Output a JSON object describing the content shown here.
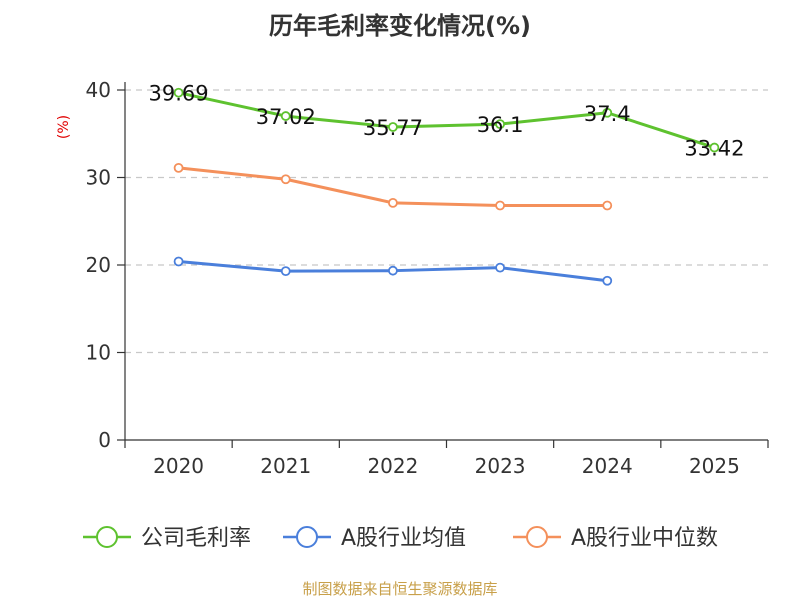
{
  "chart_data": {
    "type": "line",
    "title": "历年毛利率变化情况(%)",
    "ylabel": "(%)",
    "xlabel": "",
    "ylim": [
      0,
      40
    ],
    "yticks": [
      0,
      10,
      20,
      30,
      40
    ],
    "grid": true,
    "legend_position": "bottom",
    "categories": [
      "2020",
      "2021",
      "2022",
      "2023",
      "2024",
      "2025"
    ],
    "series": [
      {
        "name": "公司毛利率",
        "color": "#5ec22f",
        "values": [
          39.69,
          37.02,
          35.77,
          36.1,
          37.4,
          33.42
        ],
        "labels": [
          "39.69",
          "37.02",
          "35.77",
          "36.1",
          "37.4",
          "33.42"
        ],
        "show_labels": true
      },
      {
        "name": "A股行业均值",
        "color": "#4a7fdb",
        "values": [
          20.4,
          19.3,
          19.35,
          19.7,
          18.2,
          null
        ],
        "show_labels": false
      },
      {
        "name": "A股行业中位数",
        "color": "#f4905b",
        "values": [
          31.1,
          29.8,
          27.1,
          26.8,
          26.8,
          null
        ],
        "show_labels": false
      }
    ]
  },
  "source": "制图数据来自恒生聚源数据库"
}
